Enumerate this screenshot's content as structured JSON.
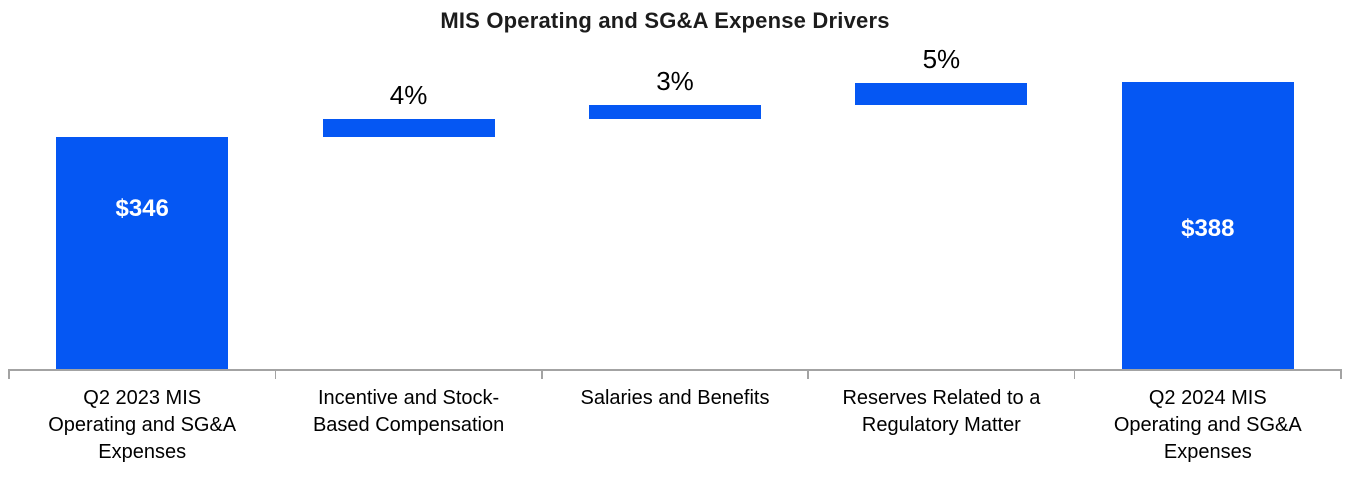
{
  "chart_data": {
    "type": "waterfall",
    "title": "MIS Operating and SG&A Expense Drivers",
    "xlabel": "",
    "ylabel": "",
    "legend": false,
    "gridlines": false,
    "y_axis_visible": false,
    "baseline_truncated": true,
    "categories": [
      "Q2 2023 MIS Operating and SG&A Expenses",
      "Incentive and Stock-Based Compensation",
      "Salaries and Benefits",
      "Reserves Related to a Regulatory Matter",
      "Q2 2024 MIS Operating and SG&A Expenses"
    ],
    "bars": [
      {
        "name": "q2-2023-total",
        "kind": "total",
        "value": 346,
        "label": "$346",
        "label_position": "inside",
        "start": 0,
        "end": 346,
        "category_lines": [
          "Q2 2023 MIS",
          "Operating and SG&A",
          "Expenses"
        ]
      },
      {
        "name": "incentive-stock-comp",
        "kind": "increase",
        "value_pct": 4,
        "label": "4%",
        "label_position": "above",
        "start": 346,
        "end": 359.8,
        "category_lines": [
          "Incentive and Stock-",
          "Based Compensation"
        ]
      },
      {
        "name": "salaries-benefits",
        "kind": "increase",
        "value_pct": 3,
        "label": "3%",
        "label_position": "above",
        "start": 359.8,
        "end": 370.2,
        "category_lines": [
          "Salaries and Benefits"
        ]
      },
      {
        "name": "regulatory-reserves",
        "kind": "increase",
        "value_pct": 5,
        "label": "5%",
        "label_position": "above",
        "start": 370.2,
        "end": 387.5,
        "category_lines": [
          "Reserves Related to a",
          "Regulatory Matter"
        ]
      },
      {
        "name": "q2-2024-total",
        "kind": "total",
        "value": 388,
        "label": "$388",
        "label_position": "inside",
        "start": 0,
        "end": 388,
        "category_lines": [
          "Q2 2024 MIS",
          "Operating and SG&A",
          "Expenses"
        ]
      }
    ],
    "colors": {
      "bar": "#0557f3",
      "label_inside": "#ffffff",
      "label_above": "#000000",
      "axis": "#a3a3a3",
      "title": "#1c1c1c"
    }
  }
}
